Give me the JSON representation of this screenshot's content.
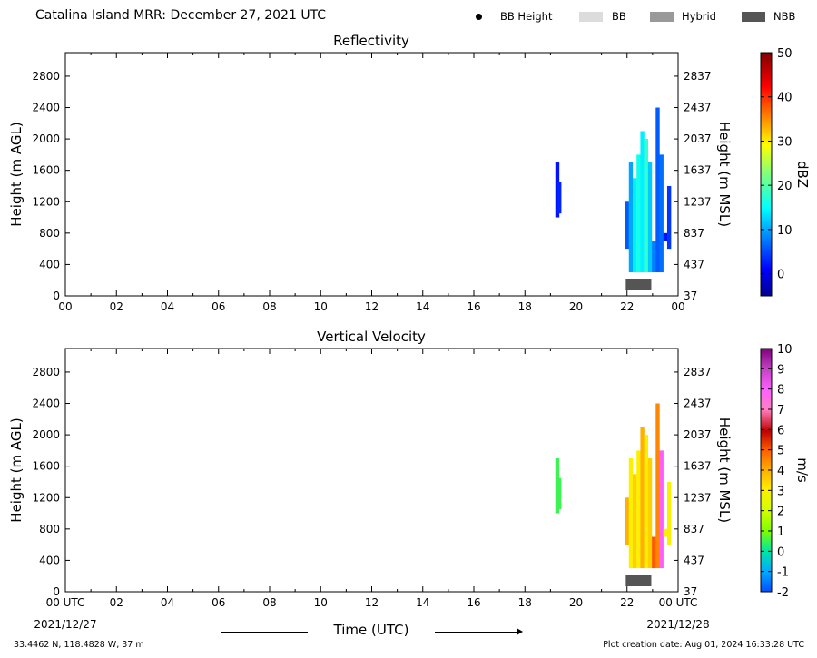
{
  "title": "Catalina Island MRR:  December 27, 2021 UTC",
  "legend": [
    {
      "label": "BB Height",
      "kind": "dot",
      "color": "#000000"
    },
    {
      "label": "BB",
      "kind": "rect",
      "color": "#dcdcdc"
    },
    {
      "label": "Hybrid",
      "kind": "rect",
      "color": "#999999"
    },
    {
      "label": "NBB",
      "kind": "rect",
      "color": "#555555"
    }
  ],
  "panels": [
    {
      "title": "Reflectivity",
      "colorbar_label": "dBZ"
    },
    {
      "title": "Vertical Velocity",
      "colorbar_label": "m/s"
    }
  ],
  "axes": {
    "ylabel_left": "Height (m AGL)",
    "ylabel_right": "Height (m MSL)",
    "xlabel": "Time (UTC)",
    "x_ticks_top": [
      "00",
      "02",
      "04",
      "06",
      "08",
      "10",
      "12",
      "14",
      "16",
      "18",
      "20",
      "22",
      "00"
    ],
    "x_ticks_bottom": [
      "00 UTC",
      "02",
      "04",
      "06",
      "08",
      "10",
      "12",
      "14",
      "16",
      "18",
      "20",
      "22",
      "00 UTC"
    ],
    "y_ticks_left": [
      "0",
      "400",
      "800",
      "1200",
      "1600",
      "2000",
      "2400",
      "2800"
    ],
    "y_ticks_right": [
      "37",
      "437",
      "837",
      "1237",
      "1637",
      "2037",
      "2437",
      "2837"
    ],
    "start_date": "2021/12/27",
    "end_date": "2021/12/28"
  },
  "footer": {
    "location": "33.4462 N, 118.4828 W, 37 m",
    "created": "Plot creation date: Aug 01, 2024 16:33:28 UTC"
  },
  "colorbars": {
    "reflectivity": {
      "ticks": [
        "0",
        "10",
        "20",
        "30",
        "40",
        "50"
      ],
      "min": -5,
      "max": 50
    },
    "velocity": {
      "ticks": [
        "-2",
        "-1",
        "0",
        "1",
        "2",
        "3",
        "4",
        "5",
        "6",
        "7",
        "8",
        "9",
        "10"
      ],
      "min": -2,
      "max": 10
    }
  },
  "chart_data": [
    {
      "type": "heatmap",
      "title": "Reflectivity",
      "xlabel": "Time (UTC)",
      "ylabel": "Height (m AGL)",
      "xlim": [
        0,
        24
      ],
      "ylim": [
        0,
        3100
      ],
      "units": "dBZ",
      "colorbar_range": [
        -5,
        50
      ],
      "echoes": [
        {
          "t": 19.27,
          "bottom": 1000,
          "top": 1700,
          "value": 2
        },
        {
          "t": 19.35,
          "bottom": 1050,
          "top": 1450,
          "value": 3
        },
        {
          "t": 22.0,
          "bottom": 600,
          "top": 1200,
          "value": 6
        },
        {
          "t": 22.15,
          "bottom": 300,
          "top": 1700,
          "value": 10
        },
        {
          "t": 22.3,
          "bottom": 300,
          "top": 1500,
          "value": 14
        },
        {
          "t": 22.45,
          "bottom": 300,
          "top": 1800,
          "value": 16
        },
        {
          "t": 22.6,
          "bottom": 300,
          "top": 2100,
          "value": 14
        },
        {
          "t": 22.75,
          "bottom": 300,
          "top": 2000,
          "value": 18
        },
        {
          "t": 22.9,
          "bottom": 300,
          "top": 1700,
          "value": 12
        },
        {
          "t": 23.05,
          "bottom": 300,
          "top": 700,
          "value": 8
        },
        {
          "t": 23.2,
          "bottom": 300,
          "top": 2400,
          "value": 6
        },
        {
          "t": 23.35,
          "bottom": 300,
          "top": 1800,
          "value": 7
        },
        {
          "t": 23.5,
          "bottom": 700,
          "top": 800,
          "value": 2
        },
        {
          "t": 23.65,
          "bottom": 600,
          "top": 1400,
          "value": 4
        }
      ],
      "bright_band": [
        {
          "start": 21.95,
          "end": 22.95,
          "type": "NBB"
        }
      ]
    },
    {
      "type": "heatmap",
      "title": "Vertical Velocity",
      "xlabel": "Time (UTC)",
      "ylabel": "Height (m AGL)",
      "xlim": [
        0,
        24
      ],
      "ylim": [
        0,
        3100
      ],
      "units": "m/s",
      "colorbar_range": [
        -2,
        10
      ],
      "echoes": [
        {
          "t": 19.27,
          "bottom": 1000,
          "top": 1700,
          "value": 0.5
        },
        {
          "t": 19.35,
          "bottom": 1050,
          "top": 1450,
          "value": 0.5
        },
        {
          "t": 22.0,
          "bottom": 600,
          "top": 1200,
          "value": 4
        },
        {
          "t": 22.15,
          "bottom": 300,
          "top": 1700,
          "value": 3
        },
        {
          "t": 22.3,
          "bottom": 300,
          "top": 1500,
          "value": 3.5
        },
        {
          "t": 22.45,
          "bottom": 300,
          "top": 1800,
          "value": 3
        },
        {
          "t": 22.6,
          "bottom": 300,
          "top": 2100,
          "value": 4
        },
        {
          "t": 22.75,
          "bottom": 300,
          "top": 2000,
          "value": 3
        },
        {
          "t": 22.9,
          "bottom": 300,
          "top": 1700,
          "value": 3.5
        },
        {
          "t": 23.05,
          "bottom": 300,
          "top": 700,
          "value": 5
        },
        {
          "t": 23.2,
          "bottom": 300,
          "top": 2400,
          "value": 4.5
        },
        {
          "t": 23.35,
          "bottom": 300,
          "top": 1800,
          "value": 8
        },
        {
          "t": 23.5,
          "bottom": 700,
          "top": 800,
          "value": 3
        },
        {
          "t": 23.65,
          "bottom": 600,
          "top": 1400,
          "value": 3
        }
      ],
      "bright_band": [
        {
          "start": 21.95,
          "end": 22.95,
          "type": "NBB"
        }
      ]
    }
  ]
}
